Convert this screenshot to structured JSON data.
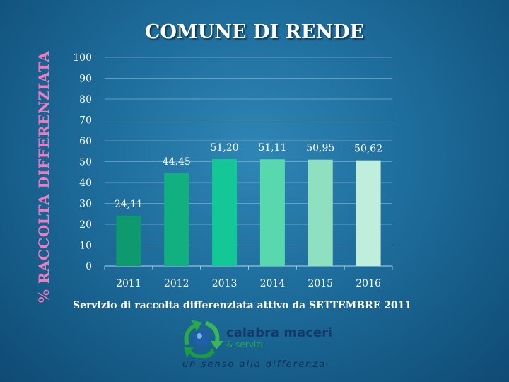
{
  "slide": {
    "title": "COMUNE DI RENDE",
    "caption": "Servizio di raccolta differenziata attivo da SETTEMBRE 2011"
  },
  "logo": {
    "name": "calabra maceri",
    "subname": "& servizi",
    "tagline": "un senso alla differenza",
    "icon": "recycling-arrows-globe-icon"
  },
  "chart_data": {
    "type": "bar",
    "ylabel": "% RACCOLTA DIFFERENZIATA",
    "categories": [
      "2011",
      "2012",
      "2013",
      "2014",
      "2015",
      "2016"
    ],
    "values": [
      24.11,
      44.45,
      51.2,
      51.11,
      50.95,
      50.62
    ],
    "value_labels": [
      "24,11",
      "44.45",
      "51,20",
      "51,11",
      "50,95",
      "50,62"
    ],
    "yticks": [
      "0",
      "10",
      "20",
      "30",
      "40",
      "50",
      "60",
      "70",
      "80",
      "90",
      "100"
    ],
    "ylim": [
      0,
      100
    ],
    "grid": true,
    "legend": "none",
    "bar_colors": [
      "#0e9a6e",
      "#12b080",
      "#13c896",
      "#57d8ad",
      "#8fe0c0",
      "#bfeedc"
    ]
  }
}
